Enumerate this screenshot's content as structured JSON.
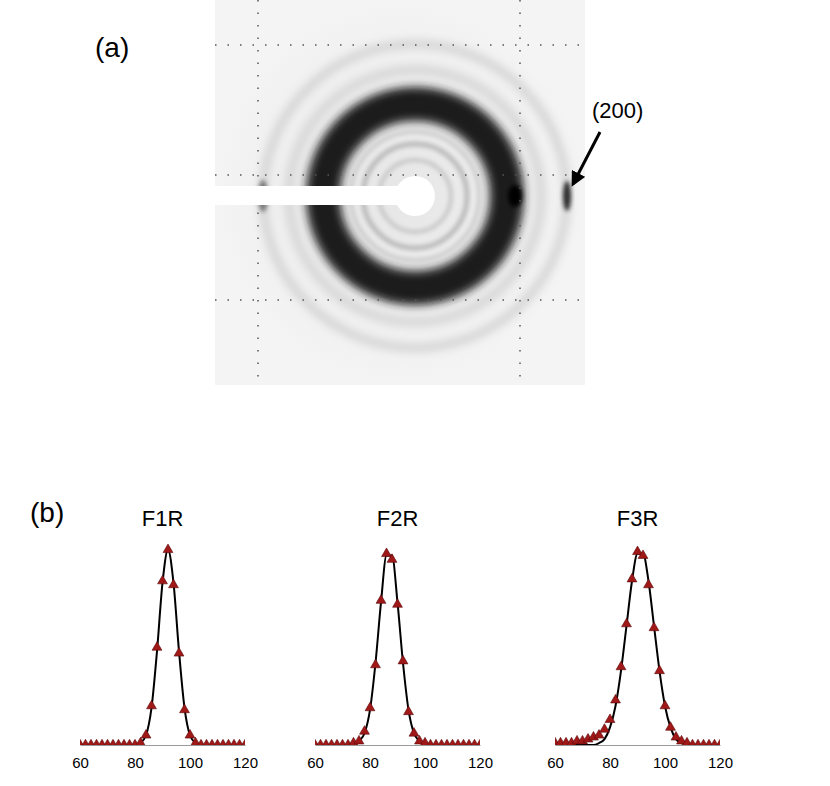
{
  "figure": {
    "panel_a": {
      "label": "(a)",
      "annotation": "(200)"
    },
    "panel_b": {
      "label": "(b)"
    }
  },
  "chart_data": [
    {
      "type": "scatter",
      "title": "F1R",
      "x": [
        60,
        62,
        64,
        66,
        68,
        70,
        72,
        74,
        76,
        78,
        80,
        82,
        84,
        86,
        88,
        90,
        92,
        94,
        96,
        98,
        100,
        102,
        104,
        106,
        108,
        110,
        112,
        114,
        116,
        118,
        120
      ],
      "xlim": [
        60,
        120
      ],
      "xticks": [
        60,
        80,
        100,
        120
      ],
      "ylim": [
        0,
        1.05
      ],
      "tick_labels": "x",
      "series": [
        {
          "type": "scatter",
          "marker": "triangle",
          "color": "#a01818",
          "values": [
            0,
            0,
            0,
            0,
            0,
            0,
            0,
            0,
            0,
            0,
            0,
            0.01,
            0.05,
            0.2,
            0.5,
            0.84,
            1.0,
            0.82,
            0.47,
            0.18,
            0.05,
            0.01,
            0,
            0,
            0,
            0,
            0,
            0,
            0,
            0,
            0
          ]
        },
        {
          "type": "line",
          "line_style": "solid",
          "color": "#000000",
          "values": [
            0,
            0,
            0,
            0,
            0,
            0,
            0,
            0,
            0,
            0,
            0,
            0.01,
            0.05,
            0.19,
            0.48,
            0.83,
            1.0,
            0.83,
            0.48,
            0.19,
            0.05,
            0.01,
            0,
            0,
            0,
            0,
            0,
            0,
            0,
            0,
            0
          ]
        }
      ]
    },
    {
      "type": "scatter",
      "title": "F2R",
      "x": [
        60,
        62,
        64,
        66,
        68,
        70,
        72,
        74,
        76,
        78,
        80,
        82,
        84,
        86,
        88,
        90,
        92,
        94,
        96,
        98,
        100,
        102,
        104,
        106,
        108,
        110,
        112,
        114,
        116,
        118,
        120
      ],
      "xlim": [
        60,
        120
      ],
      "xticks": [
        60,
        80,
        100,
        120
      ],
      "ylim": [
        0,
        1.05
      ],
      "tick_labels": "x",
      "series": [
        {
          "type": "scatter",
          "marker": "triangle",
          "color": "#a01818",
          "values": [
            0,
            0,
            0,
            0,
            0,
            0,
            0,
            0.01,
            0.02,
            0.07,
            0.19,
            0.41,
            0.74,
            0.98,
            0.95,
            0.72,
            0.43,
            0.17,
            0.06,
            0.02,
            0.01,
            0,
            0,
            0,
            0,
            0,
            0,
            0,
            0,
            0,
            0
          ]
        },
        {
          "type": "line",
          "line_style": "solid",
          "color": "#000000",
          "values": [
            0,
            0,
            0,
            0,
            0,
            0,
            0,
            0,
            0.02,
            0.06,
            0.18,
            0.42,
            0.73,
            0.97,
            0.97,
            0.73,
            0.42,
            0.18,
            0.06,
            0.02,
            0,
            0,
            0,
            0,
            0,
            0,
            0,
            0,
            0,
            0,
            0
          ]
        }
      ]
    },
    {
      "type": "scatter",
      "title": "F3R",
      "x": [
        60,
        62,
        64,
        66,
        68,
        70,
        72,
        74,
        76,
        78,
        80,
        82,
        84,
        86,
        88,
        90,
        92,
        94,
        96,
        98,
        100,
        102,
        104,
        106,
        108,
        110,
        112,
        114,
        116,
        118,
        120
      ],
      "xlim": [
        60,
        120
      ],
      "xticks": [
        60,
        80,
        100,
        120
      ],
      "ylim": [
        0,
        1.05
      ],
      "tick_labels": "x",
      "series": [
        {
          "type": "scatter",
          "marker": "triangle",
          "color": "#a01818",
          "values": [
            0.01,
            0.01,
            0.01,
            0.01,
            0.02,
            0.02,
            0.03,
            0.04,
            0.05,
            0.08,
            0.13,
            0.23,
            0.4,
            0.62,
            0.85,
            0.99,
            0.97,
            0.82,
            0.6,
            0.38,
            0.2,
            0.09,
            0.04,
            0.02,
            0.01,
            0,
            0,
            0,
            0,
            0,
            0
          ]
        },
        {
          "type": "line",
          "line_style": "solid",
          "color": "#000000",
          "values": [
            0,
            0,
            0,
            0,
            0,
            0,
            0,
            0,
            0.01,
            0.03,
            0.09,
            0.2,
            0.38,
            0.61,
            0.84,
            0.98,
            0.98,
            0.84,
            0.61,
            0.38,
            0.2,
            0.09,
            0.03,
            0.01,
            0,
            0,
            0,
            0,
            0,
            0,
            0
          ]
        }
      ]
    }
  ]
}
